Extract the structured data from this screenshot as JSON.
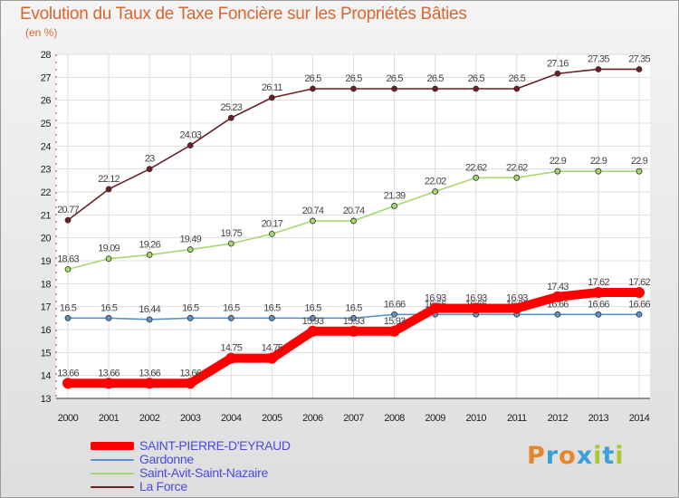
{
  "title": "Evolution du Taux de Taxe Foncière sur les Propriétés Bâties",
  "unit": "(en %)",
  "logo": {
    "letters": [
      "P",
      "r",
      "o",
      "x",
      "i",
      "t",
      "i"
    ],
    "colors": [
      "#e8842a",
      "#3aa0d8",
      "#e8842a",
      "#3aa0d8",
      "#a8c832",
      "#3aa0d8",
      "#a8c832"
    ]
  },
  "chart_data": {
    "type": "line",
    "x": [
      "2000",
      "2001",
      "2002",
      "2003",
      "2004",
      "2005",
      "2006",
      "2007",
      "2008",
      "2009",
      "2010",
      "2011",
      "2012",
      "2013",
      "2014"
    ],
    "ylim": [
      13,
      28
    ],
    "yticks": [
      "13",
      "14",
      "15",
      "16",
      "17",
      "18",
      "19",
      "20",
      "21",
      "22",
      "23",
      "24",
      "25",
      "26",
      "27",
      "28"
    ],
    "grid": true,
    "legend_position": "bottom-left",
    "series": [
      {
        "name": "La Force",
        "color": "#6b1f24",
        "labels": [
          "20.77",
          "22.12",
          "23",
          "24.03",
          "25.23",
          "26.11",
          "26.5",
          "26.5",
          "26.5",
          "26.5",
          "26.5",
          "26.5",
          "27.16",
          "27.35",
          "27.35"
        ],
        "values": [
          20.77,
          22.12,
          23,
          24.03,
          25.23,
          26.11,
          26.5,
          26.5,
          26.5,
          26.5,
          26.5,
          26.5,
          27.16,
          27.35,
          27.35
        ]
      },
      {
        "name": "Saint-Avit-Saint-Nazaire",
        "color": "#a6d86e",
        "labels": [
          "18.63",
          "19.09",
          "19.26",
          "19.49",
          "19.75",
          "20.17",
          "20.74",
          "20.74",
          "21.39",
          "22.02",
          "22.62",
          "22.62",
          "22.9",
          "22.9",
          "22.9"
        ],
        "values": [
          18.63,
          19.09,
          19.26,
          19.49,
          19.75,
          20.17,
          20.74,
          20.74,
          21.39,
          22.02,
          22.62,
          22.62,
          22.9,
          22.9,
          22.9
        ]
      },
      {
        "name": "Gardonne",
        "color": "#5a93c9",
        "labels": [
          "16.5",
          "16.5",
          "16.44",
          "16.5",
          "16.5",
          "16.5",
          "16.5",
          "16.5",
          "16.66",
          "16.66",
          "16.66",
          "16.66",
          "16.66",
          "16.66",
          "16.66"
        ],
        "values": [
          16.5,
          16.5,
          16.44,
          16.5,
          16.5,
          16.5,
          16.5,
          16.5,
          16.66,
          16.66,
          16.66,
          16.66,
          16.66,
          16.66,
          16.66
        ]
      },
      {
        "name": "SAINT-PIERRE-D'EYRAUD",
        "color": "#ff0000",
        "labels": [
          "13.66",
          "13.66",
          "13.66",
          "13.66",
          "14.75",
          "14.75",
          "15.93",
          "15.93",
          "15.93",
          "16.93",
          "16.93",
          "16.93",
          "17.43",
          "17.62",
          "17.62"
        ],
        "values": [
          13.66,
          13.66,
          13.66,
          13.66,
          14.75,
          14.75,
          15.93,
          15.93,
          15.93,
          16.93,
          16.93,
          16.93,
          17.43,
          17.62,
          17.62
        ]
      }
    ],
    "legend": [
      {
        "label": "SAINT-PIERRE-D'EYRAUD",
        "color": "#ff0000"
      },
      {
        "label": "Gardonne",
        "color": "#5a93c9"
      },
      {
        "label": "Saint-Avit-Saint-Nazaire",
        "color": "#a6d86e"
      },
      {
        "label": "La Force",
        "color": "#6b1f24"
      }
    ]
  }
}
